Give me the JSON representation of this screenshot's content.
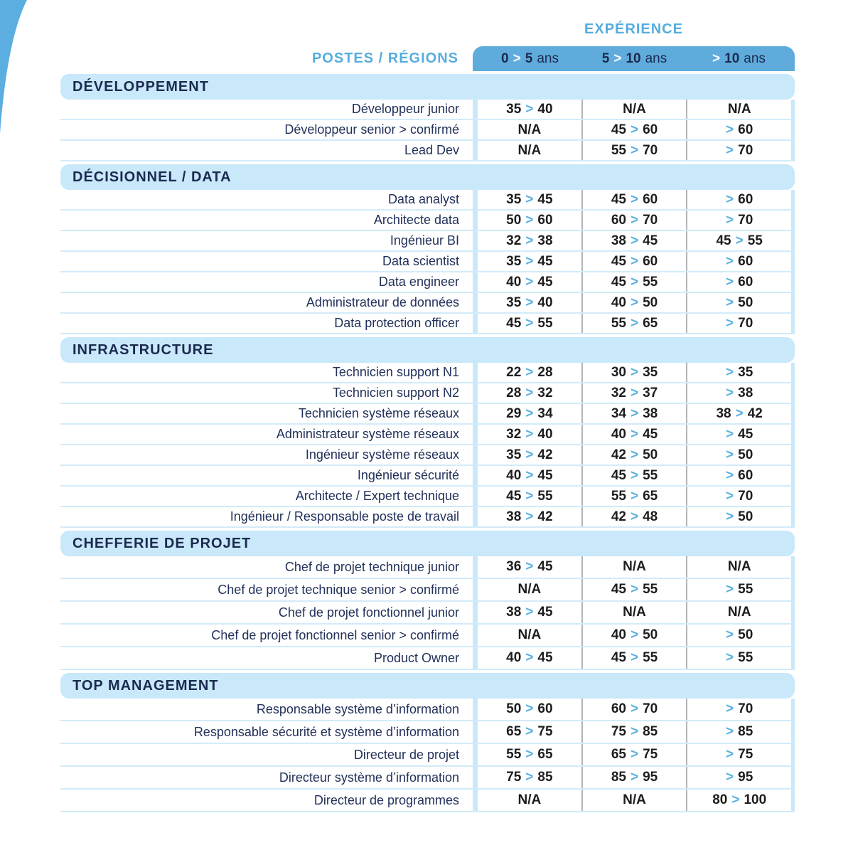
{
  "page": {
    "experience_title": "EXPÉRIENCE",
    "postes_label": "POSTES / RÉGIONS",
    "columns": [
      "0 > 5 ans",
      "5 > 10 ans",
      "> 10 ans"
    ],
    "sections": [
      {
        "title": "DÉVELOPPEMENT",
        "rows": [
          {
            "label": "Développeur junior",
            "values": [
              "35 > 40",
              "N/A",
              "N/A"
            ]
          },
          {
            "label": "Développeur senior > confirmé",
            "values": [
              "N/A",
              "45 > 60",
              "> 60"
            ]
          },
          {
            "label": "Lead Dev",
            "values": [
              "N/A",
              "55 > 70",
              "> 70"
            ]
          }
        ]
      },
      {
        "title": "DÉCISIONNEL / DATA",
        "rows": [
          {
            "label": "Data analyst",
            "values": [
              "35 > 45",
              "45 > 60",
              "> 60"
            ]
          },
          {
            "label": "Architecte data",
            "values": [
              "50 > 60",
              "60 > 70",
              "> 70"
            ]
          },
          {
            "label": "Ingénieur BI",
            "values": [
              "32 > 38",
              "38 > 45",
              "45 > 55"
            ]
          },
          {
            "label": "Data scientist",
            "values": [
              "35 > 45",
              "45 > 60",
              "> 60"
            ]
          },
          {
            "label": "Data engineer",
            "values": [
              "40 > 45",
              "45 > 55",
              "> 60"
            ]
          },
          {
            "label": "Administrateur de données",
            "values": [
              "35 > 40",
              "40 > 50",
              "> 50"
            ]
          },
          {
            "label": "Data protection officer",
            "values": [
              "45 > 55",
              "55 > 65",
              "> 70"
            ]
          }
        ]
      },
      {
        "title": "INFRASTRUCTURE",
        "rows": [
          {
            "label": "Technicien support N1",
            "values": [
              "22 > 28",
              "30 > 35",
              "> 35"
            ]
          },
          {
            "label": "Technicien support N2",
            "values": [
              "28 > 32",
              "32 > 37",
              "> 38"
            ]
          },
          {
            "label": "Technicien système réseaux",
            "values": [
              "29 > 34",
              "34 > 38",
              "38 > 42"
            ]
          },
          {
            "label": "Administrateur système réseaux",
            "values": [
              "32 > 40",
              "40 > 45",
              "> 45"
            ]
          },
          {
            "label": "Ingénieur système réseaux",
            "values": [
              "35 > 42",
              "42 > 50",
              "> 50"
            ]
          },
          {
            "label": "Ingénieur sécurité",
            "values": [
              "40 > 45",
              "45 > 55",
              "> 60"
            ]
          },
          {
            "label": "Architecte / Expert technique",
            "values": [
              "45 > 55",
              "55 > 65",
              "> 70"
            ]
          },
          {
            "label": "Ingénieur / Responsable poste de travail",
            "values": [
              "38 > 42",
              "42 > 48",
              "> 50"
            ]
          }
        ]
      },
      {
        "title": "CHEFFERIE DE PROJET",
        "rows": [
          {
            "label": "Chef de projet technique junior",
            "values": [
              "36 > 45",
              "N/A",
              "N/A"
            ]
          },
          {
            "label": "Chef de projet technique senior > confirmé",
            "values": [
              "N/A",
              "45 > 55",
              "> 55"
            ]
          },
          {
            "label": "Chef de projet fonctionnel junior",
            "values": [
              "38 > 45",
              "N/A",
              "N/A"
            ]
          },
          {
            "label": "Chef de projet fonctionnel senior > confirmé",
            "values": [
              "N/A",
              "40 > 50",
              "> 50"
            ]
          },
          {
            "label": "Product Owner",
            "values": [
              "40 > 45",
              "45 > 55",
              "> 55"
            ]
          }
        ]
      },
      {
        "title": "TOP MANAGEMENT",
        "rows": [
          {
            "label": "Responsable système d’information",
            "values": [
              "50 > 60",
              "60 > 70",
              "> 70"
            ]
          },
          {
            "label": "Responsable sécurité et système d’information",
            "values": [
              "65 > 75",
              "75 > 85",
              "> 85"
            ]
          },
          {
            "label": "Directeur de projet",
            "values": [
              "55 > 65",
              "65 > 75",
              "> 75"
            ]
          },
          {
            "label": "Directeur système d’information",
            "values": [
              "75 > 85",
              "85 > 95",
              "> 95"
            ]
          },
          {
            "label": "Directeur de programmes",
            "values": [
              "N/A",
              "N/A",
              "80 > 100"
            ]
          }
        ]
      }
    ],
    "colors": {
      "band_blue": "#5FACDC",
      "light_blue": "#C9E8FA",
      "separator_blue": "#D2EBFA",
      "blue_text": "#56ACDE",
      "navy": "#1B2A4F",
      "value_black": "#1D1D1F",
      "arrow_blue": "#5CB1E1",
      "gray_line": "#B0B5BA"
    }
  }
}
